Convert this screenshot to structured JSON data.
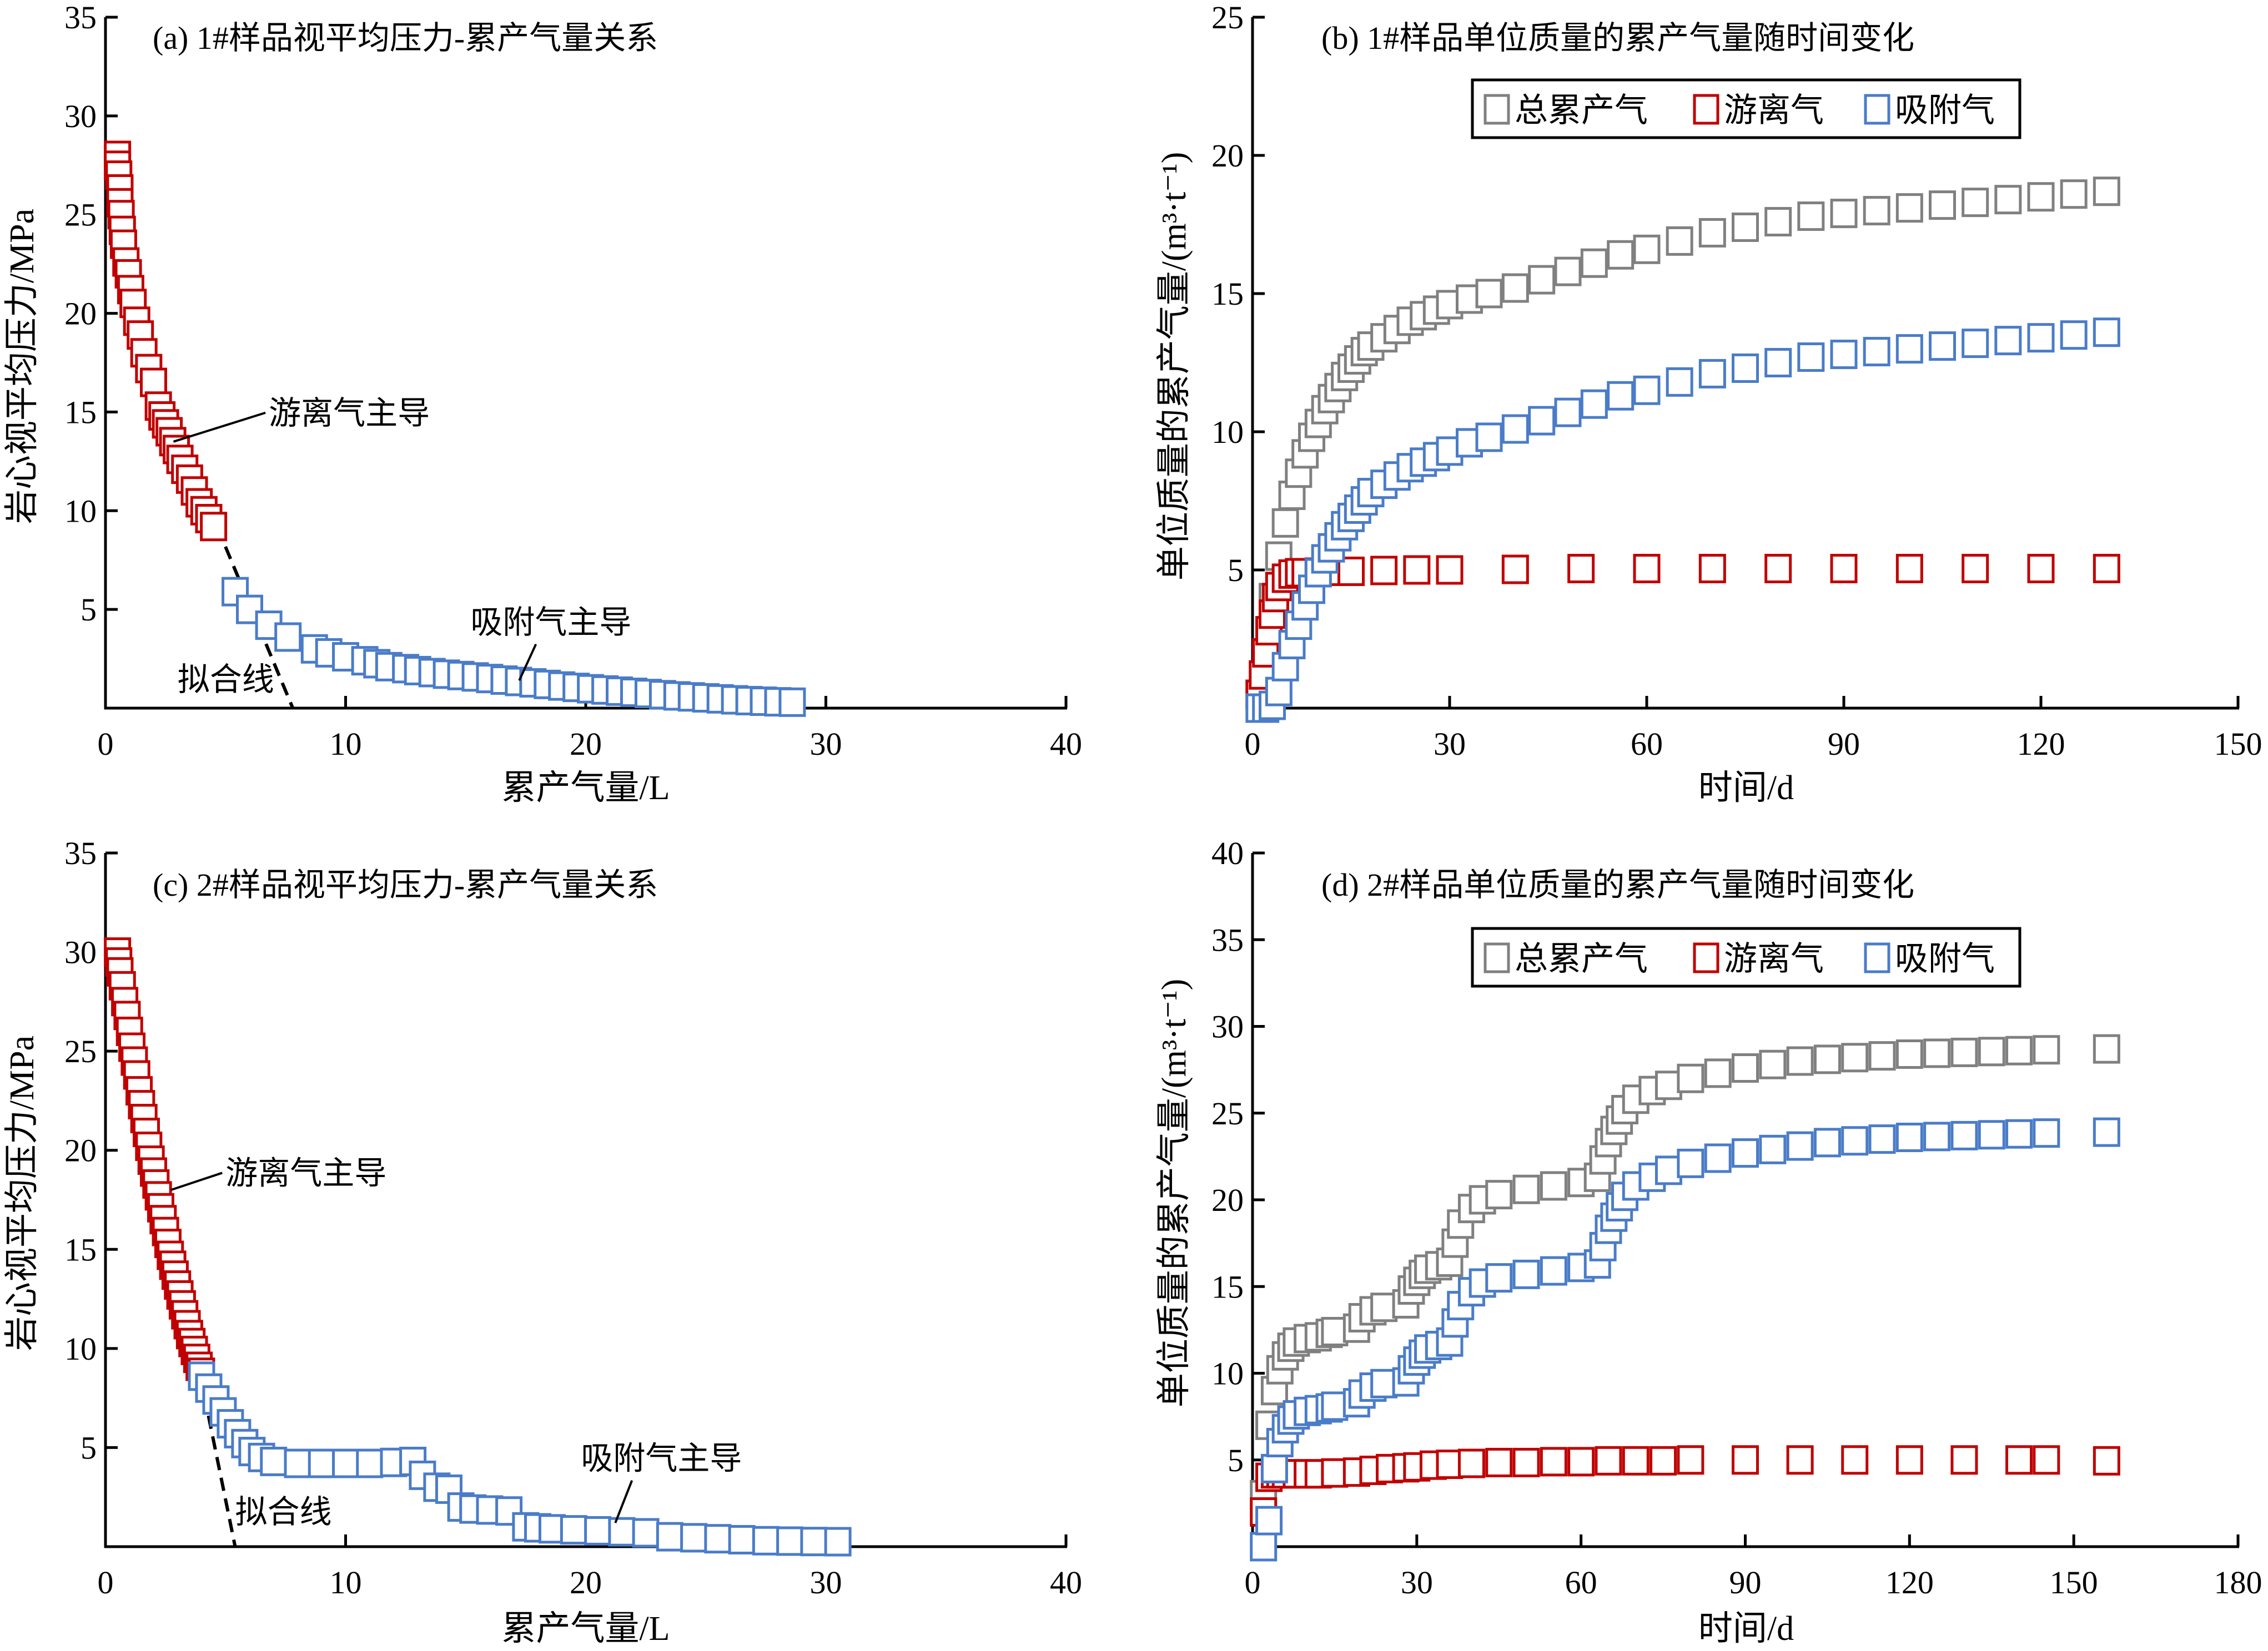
{
  "colors": {
    "free_gas": "#C00000",
    "adsorbed_gas": "#4A7CC8",
    "total_gas": "#808080",
    "axis": "#000000"
  },
  "chart_data": [
    {
      "id": "a",
      "type": "scatter",
      "title": "(a) 1#样品视平均压力-累产气量关系",
      "xlabel": "累产气量/L",
      "ylabel": "岩心视平均压力/MPa",
      "xlim": [
        0,
        40
      ],
      "ylim": [
        0,
        35
      ],
      "xticks": [
        0,
        10,
        20,
        30,
        40
      ],
      "yticks": [
        5,
        10,
        15,
        20,
        25,
        30,
        35
      ],
      "xtick_labels": [
        "0",
        "10",
        "20",
        "30",
        "40"
      ],
      "ytick_labels": [
        "5",
        "10",
        "15",
        "20",
        "25",
        "30",
        "35"
      ],
      "grid": false,
      "series": [
        {
          "name": "游离气",
          "color_key": "free_gas",
          "x": [
            0.5,
            0.5,
            0.55,
            0.6,
            0.6,
            0.65,
            0.7,
            0.75,
            0.85,
            0.95,
            1.05,
            1.15,
            1.3,
            1.45,
            1.6,
            1.8,
            2.0,
            2.2,
            2.35,
            2.5,
            2.65,
            2.8,
            2.95,
            3.1,
            3.3,
            3.5,
            3.7,
            3.9,
            4.1,
            4.3,
            4.5
          ],
          "y": [
            28.0,
            27.5,
            27.0,
            26.3,
            25.6,
            25.0,
            24.2,
            23.5,
            22.6,
            22.0,
            21.2,
            20.5,
            19.6,
            18.9,
            18.0,
            17.2,
            16.5,
            15.3,
            14.8,
            14.4,
            14.0,
            13.5,
            13.1,
            12.6,
            12.1,
            11.6,
            11.0,
            10.4,
            10.0,
            9.6,
            9.2
          ]
        },
        {
          "name": "吸附气",
          "color_key": "adsorbed_gas",
          "x": [
            5.4,
            6.0,
            6.8,
            7.6,
            8.7,
            9.3,
            10.0,
            10.8,
            11.3,
            11.8,
            12.5,
            13.0,
            13.6,
            14.2,
            14.8,
            15.4,
            16.0,
            16.6,
            17.2,
            17.8,
            18.4,
            19.0,
            19.6,
            20.2,
            20.8,
            21.4,
            22.0,
            22.6,
            23.2,
            23.8,
            24.4,
            25.0,
            25.6,
            26.2,
            26.8,
            27.4,
            28.0,
            28.6
          ],
          "y": [
            5.9,
            5.0,
            4.2,
            3.6,
            3.0,
            2.8,
            2.6,
            2.4,
            2.25,
            2.1,
            2.0,
            1.9,
            1.8,
            1.72,
            1.65,
            1.58,
            1.5,
            1.42,
            1.35,
            1.28,
            1.2,
            1.12,
            1.05,
            0.98,
            0.92,
            0.86,
            0.8,
            0.74,
            0.68,
            0.62,
            0.57,
            0.52,
            0.47,
            0.42,
            0.38,
            0.35,
            0.32,
            0.3
          ]
        }
      ],
      "fit_line": {
        "label": "拟合线",
        "x": [
          0.6,
          7.8
        ],
        "y": [
          21.0,
          0.0
        ]
      },
      "annotations": [
        {
          "text": "游离气主导",
          "target": [
            2.6,
            13.5
          ],
          "pos": [
            6.8,
            14.4
          ]
        },
        {
          "text": "吸附气主导",
          "target": [
            17.0,
            1.4
          ],
          "pos": [
            15.2,
            3.8
          ]
        },
        {
          "text": "拟合线",
          "pos": [
            3.0,
            0.9
          ]
        }
      ]
    },
    {
      "id": "b",
      "type": "scatter",
      "title": "(b) 1#样品单位质量的累产气量随时间变化",
      "xlabel": "时间/d",
      "ylabel": "单位质量的累产气量/(m³·t⁻¹)",
      "xlim": [
        0,
        150
      ],
      "ylim": [
        0,
        25
      ],
      "xticks": [
        0,
        30,
        60,
        90,
        120,
        150
      ],
      "yticks": [
        5,
        10,
        15,
        20,
        25
      ],
      "xtick_labels": [
        "0",
        "30",
        "60",
        "90",
        "120",
        "150"
      ],
      "ytick_labels": [
        "5",
        "10",
        "15",
        "20",
        "25"
      ],
      "grid": false,
      "legend": {
        "position": "top-center",
        "entries": [
          "总累产气",
          "游离气",
          "吸附气"
        ]
      },
      "series": [
        {
          "name": "总累产气",
          "color_key": "total_gas",
          "x": [
            1,
            2,
            3,
            4,
            5,
            6,
            7,
            8,
            9,
            10,
            11,
            12,
            13,
            14,
            15,
            16,
            17,
            18,
            20,
            22,
            24,
            26,
            28,
            30,
            33,
            36,
            40,
            44,
            48,
            52,
            56,
            60,
            65,
            70,
            75,
            80,
            85,
            90,
            95,
            100,
            105,
            110,
            115,
            120,
            125,
            130
          ],
          "y": [
            0.5,
            2.0,
            4.0,
            5.5,
            6.7,
            7.7,
            8.5,
            9.2,
            9.8,
            10.3,
            10.8,
            11.2,
            11.6,
            12.0,
            12.3,
            12.6,
            12.9,
            13.1,
            13.4,
            13.7,
            14.0,
            14.2,
            14.4,
            14.6,
            14.8,
            15.0,
            15.2,
            15.5,
            15.8,
            16.1,
            16.4,
            16.6,
            16.9,
            17.2,
            17.4,
            17.6,
            17.8,
            17.9,
            18.0,
            18.1,
            18.2,
            18.3,
            18.4,
            18.5,
            18.6,
            18.7
          ]
        },
        {
          "name": "游离气",
          "color_key": "free_gas",
          "x": [
            1,
            1.5,
            2,
            2.5,
            3,
            3.5,
            4,
            5,
            6,
            7,
            8,
            10,
            12,
            15,
            20,
            25,
            30,
            40,
            50,
            60,
            70,
            80,
            90,
            100,
            110,
            120,
            130
          ],
          "y": [
            0.5,
            1.2,
            2.0,
            2.8,
            3.4,
            4.0,
            4.4,
            4.7,
            4.85,
            4.9,
            4.9,
            4.92,
            4.95,
            4.95,
            4.98,
            5.0,
            5.0,
            5.02,
            5.05,
            5.05,
            5.05,
            5.05,
            5.05,
            5.05,
            5.05,
            5.05,
            5.05
          ]
        },
        {
          "name": "吸附气",
          "color_key": "adsorbed_gas",
          "x": [
            1,
            2,
            3,
            4,
            5,
            6,
            7,
            8,
            9,
            10,
            11,
            12,
            13,
            14,
            15,
            16,
            17,
            18,
            20,
            22,
            24,
            26,
            28,
            30,
            33,
            36,
            40,
            44,
            48,
            52,
            56,
            60,
            65,
            70,
            75,
            80,
            85,
            90,
            95,
            100,
            105,
            110,
            115,
            120,
            125,
            130
          ],
          "y": [
            0.0,
            0.0,
            0.1,
            0.6,
            1.5,
            2.3,
            3.0,
            3.7,
            4.3,
            4.9,
            5.4,
            5.8,
            6.2,
            6.6,
            6.9,
            7.2,
            7.5,
            7.8,
            8.1,
            8.4,
            8.7,
            8.9,
            9.1,
            9.3,
            9.6,
            9.8,
            10.1,
            10.4,
            10.7,
            11.0,
            11.3,
            11.5,
            11.8,
            12.1,
            12.3,
            12.5,
            12.7,
            12.8,
            12.9,
            13.0,
            13.1,
            13.2,
            13.3,
            13.4,
            13.5,
            13.6
          ]
        }
      ]
    },
    {
      "id": "c",
      "type": "scatter",
      "title": "(c) 2#样品视平均压力-累产气量关系",
      "xlabel": "累产气量/L",
      "ylabel": "岩心视平均压力/MPa",
      "xlim": [
        0,
        40
      ],
      "ylim": [
        0,
        35
      ],
      "xticks": [
        0,
        10,
        20,
        30,
        40
      ],
      "yticks": [
        5,
        10,
        15,
        20,
        25,
        30,
        35
      ],
      "xtick_labels": [
        "0",
        "10",
        "20",
        "30",
        "40"
      ],
      "ytick_labels": [
        "5",
        "10",
        "15",
        "20",
        "25",
        "30",
        "35"
      ],
      "grid": false,
      "series": [
        {
          "name": "游离气",
          "color_key": "free_gas",
          "x": [
            0.5,
            0.55,
            0.6,
            0.7,
            0.8,
            0.9,
            1.0,
            1.1,
            1.2,
            1.3,
            1.4,
            1.5,
            1.6,
            1.7,
            1.8,
            1.9,
            2.0,
            2.1,
            2.2,
            2.3,
            2.4,
            2.5,
            2.6,
            2.7,
            2.8,
            2.9,
            3.0,
            3.1,
            3.2,
            3.3,
            3.4,
            3.5,
            3.6,
            3.7,
            3.8,
            3.9,
            4.0
          ],
          "y": [
            30.0,
            29.5,
            29.0,
            28.3,
            27.5,
            26.8,
            26.0,
            25.2,
            24.5,
            23.8,
            23.0,
            22.3,
            21.6,
            20.9,
            20.2,
            19.5,
            18.9,
            18.3,
            17.7,
            17.1,
            16.5,
            15.9,
            15.3,
            14.7,
            14.2,
            13.7,
            13.2,
            12.7,
            12.2,
            11.7,
            11.2,
            10.7,
            10.3,
            9.9,
            9.5,
            9.1,
            8.8
          ]
        },
        {
          "name": "吸附气",
          "color_key": "adsorbed_gas",
          "x": [
            4.0,
            4.3,
            4.6,
            4.9,
            5.2,
            5.5,
            5.8,
            6.1,
            6.5,
            7.0,
            8.0,
            9.0,
            10.0,
            11.0,
            12.0,
            12.8,
            13.2,
            13.8,
            14.3,
            14.8,
            15.3,
            16.0,
            16.8,
            17.5,
            18.0,
            18.6,
            19.5,
            20.5,
            21.5,
            22.5,
            23.5,
            24.5,
            25.5,
            26.5,
            27.5,
            28.5,
            29.5,
            30.5
          ],
          "y": [
            8.6,
            8.0,
            7.4,
            6.8,
            6.2,
            5.7,
            5.2,
            4.8,
            4.5,
            4.3,
            4.2,
            4.2,
            4.2,
            4.2,
            4.25,
            4.3,
            3.6,
            3.0,
            2.9,
            2.0,
            1.9,
            1.85,
            1.8,
            1.0,
            0.95,
            0.9,
            0.85,
            0.8,
            0.75,
            0.7,
            0.5,
            0.45,
            0.4,
            0.35,
            0.3,
            0.28,
            0.26,
            0.25
          ]
        }
      ],
      "fit_line": {
        "label": "拟合线",
        "x": [
          0.6,
          5.4
        ],
        "y": [
          28.5,
          0.0
        ]
      },
      "annotations": [
        {
          "text": "游离气主导",
          "target": [
            2.5,
            18.0
          ],
          "pos": [
            5.0,
            18.3
          ]
        },
        {
          "text": "吸附气主导",
          "target": [
            21.0,
            1.2
          ],
          "pos": [
            19.8,
            3.9
          ]
        },
        {
          "text": "拟合线",
          "pos": [
            5.4,
            1.2
          ]
        }
      ]
    },
    {
      "id": "d",
      "type": "scatter",
      "title": "(d) 2#样品单位质量的累产气量随时间变化",
      "xlabel": "时间/d",
      "ylabel": "单位质量的累产气量/(m³·t⁻¹)",
      "xlim": [
        0,
        180
      ],
      "ylim": [
        0,
        40
      ],
      "xticks": [
        0,
        30,
        60,
        90,
        120,
        150,
        180
      ],
      "yticks": [
        5,
        10,
        15,
        20,
        25,
        30,
        35,
        40
      ],
      "xtick_labels": [
        "0",
        "30",
        "60",
        "90",
        "120",
        "150",
        "180"
      ],
      "ytick_labels": [
        "5",
        "10",
        "15",
        "20",
        "25",
        "30",
        "35",
        "40"
      ],
      "grid": false,
      "legend": {
        "position": "top-center",
        "entries": [
          "总累产气",
          "游离气",
          "吸附气"
        ]
      },
      "series": [
        {
          "name": "总累产气",
          "color_key": "total_gas",
          "x": [
            2,
            3,
            4,
            5,
            6,
            7,
            8,
            10,
            12,
            14,
            15,
            19,
            20,
            22,
            24,
            28,
            29,
            30,
            31,
            32,
            34,
            36,
            37,
            38,
            40,
            42,
            45,
            50,
            55,
            60,
            63,
            64,
            65,
            66,
            67,
            68,
            70,
            73,
            76,
            80,
            85,
            90,
            95,
            100,
            105,
            110,
            115,
            120,
            125,
            130,
            135,
            140,
            145,
            156
          ],
          "y": [
            3.0,
            7.0,
            9.0,
            10.2,
            11.0,
            11.5,
            11.8,
            12.0,
            12.1,
            12.3,
            12.4,
            12.6,
            13.2,
            13.6,
            13.8,
            14.0,
            14.8,
            15.3,
            15.7,
            16.0,
            16.2,
            16.4,
            17.5,
            18.6,
            19.5,
            20.0,
            20.3,
            20.6,
            20.8,
            21.0,
            21.3,
            22.3,
            23.3,
            24.0,
            24.6,
            25.2,
            25.8,
            26.3,
            26.6,
            27.0,
            27.3,
            27.6,
            27.8,
            28.0,
            28.1,
            28.2,
            28.3,
            28.4,
            28.45,
            28.5,
            28.55,
            28.6,
            28.65,
            28.7
          ]
        },
        {
          "name": "游离气",
          "color_key": "free_gas",
          "x": [
            2,
            3,
            4,
            5,
            6,
            8,
            10,
            12,
            15,
            19,
            22,
            25,
            28,
            30,
            33,
            36,
            40,
            45,
            50,
            55,
            60,
            65,
            70,
            75,
            80,
            90,
            100,
            110,
            120,
            130,
            140,
            145,
            156
          ],
          "y": [
            2.0,
            4.0,
            4.2,
            4.2,
            4.2,
            4.2,
            4.2,
            4.2,
            4.25,
            4.3,
            4.4,
            4.5,
            4.55,
            4.6,
            4.7,
            4.75,
            4.8,
            4.85,
            4.85,
            4.9,
            4.9,
            4.95,
            4.95,
            4.95,
            5.0,
            5.0,
            5.0,
            5.0,
            5.0,
            5.0,
            5.0,
            5.0,
            4.95
          ]
        },
        {
          "name": "吸附气",
          "color_key": "adsorbed_gas",
          "x": [
            2,
            3,
            4,
            5,
            6,
            7,
            8,
            10,
            12,
            14,
            15,
            19,
            20,
            22,
            24,
            28,
            29,
            30,
            31,
            32,
            34,
            36,
            37,
            38,
            40,
            42,
            45,
            50,
            55,
            60,
            63,
            64,
            65,
            66,
            67,
            68,
            70,
            73,
            76,
            80,
            85,
            90,
            95,
            100,
            105,
            110,
            115,
            120,
            125,
            130,
            135,
            140,
            145,
            156
          ],
          "y": [
            0.0,
            1.5,
            4.5,
            6.0,
            6.8,
            7.3,
            7.6,
            7.8,
            7.9,
            8.0,
            8.1,
            8.3,
            8.8,
            9.2,
            9.4,
            9.5,
            10.2,
            10.7,
            11.1,
            11.4,
            11.6,
            11.8,
            12.9,
            13.9,
            14.7,
            15.2,
            15.5,
            15.7,
            15.9,
            16.1,
            16.3,
            17.3,
            18.3,
            19.0,
            19.6,
            20.2,
            20.8,
            21.3,
            21.7,
            22.1,
            22.4,
            22.7,
            22.9,
            23.1,
            23.3,
            23.4,
            23.5,
            23.6,
            23.65,
            23.7,
            23.75,
            23.8,
            23.85,
            23.9
          ]
        }
      ]
    }
  ]
}
